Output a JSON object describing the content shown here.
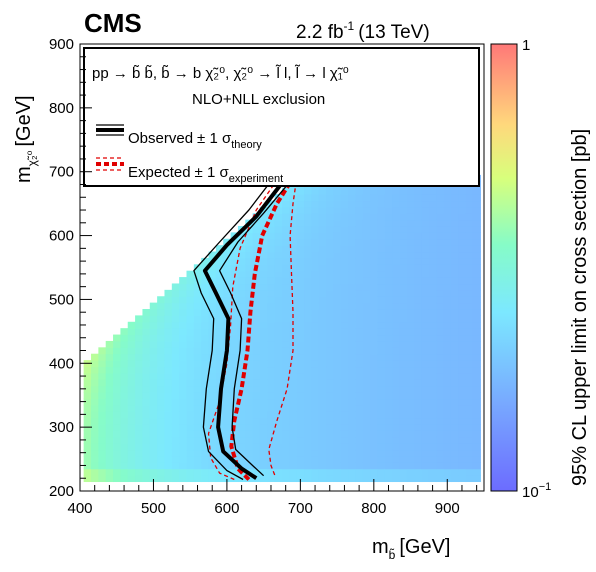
{
  "header": {
    "experiment": "CMS",
    "lumi_value": "2.2 fb",
    "lumi_exp": "-1",
    "energy": "(13 TeV)"
  },
  "legend": {
    "process": "pp → b̃ b̃, b̃ → b χ̃₂⁰, χ̃₂⁰ → l̃ l, l̃ → l χ̃₁⁰",
    "exclusion": "NLO+NLL exclusion",
    "observed_main": "Observed",
    "observed_pm": "± 1 σ",
    "observed_sub": "theory",
    "expected_main": "Expected",
    "expected_pm": "± 1 σ",
    "expected_sub": "experiment"
  },
  "colorbar": {
    "title": "95% CL upper limit on cross section [pb]",
    "top_label": "1",
    "bottom_label": "10",
    "bottom_exp": "−1"
  },
  "colors": {
    "observed": "#000000",
    "expected": "#e00000"
  },
  "chart_data": {
    "type": "heatmap",
    "xlabel": "m",
    "xlabel_sub": "b̃",
    "xlabel_unit": "[GeV]",
    "ylabel": "m",
    "ylabel_sub": "χ̃₂⁰",
    "ylabel_unit": "[GeV]",
    "xlim": [
      400,
      950
    ],
    "ylim": [
      200,
      900
    ],
    "x_ticks": [
      "400",
      "500",
      "600",
      "700",
      "800",
      "900"
    ],
    "y_ticks": [
      "200",
      "300",
      "400",
      "500",
      "600",
      "700",
      "800",
      "900"
    ],
    "z_scale": "log",
    "zlim": [
      0.1,
      1
    ],
    "cell_size_gev": 10,
    "curves": {
      "observed": [
        [
          640,
          220
        ],
        [
          620,
          235
        ],
        [
          595,
          262
        ],
        [
          588,
          300
        ],
        [
          592,
          360
        ],
        [
          600,
          420
        ],
        [
          602,
          470
        ],
        [
          585,
          510
        ],
        [
          570,
          545
        ],
        [
          600,
          585
        ],
        [
          640,
          630
        ],
        [
          680,
          690
        ]
      ],
      "observed_plus": [
        [
          622,
          218
        ],
        [
          600,
          232
        ],
        [
          575,
          262
        ],
        [
          568,
          300
        ],
        [
          572,
          360
        ],
        [
          580,
          420
        ],
        [
          582,
          470
        ],
        [
          565,
          510
        ],
        [
          555,
          545
        ],
        [
          590,
          590
        ],
        [
          630,
          640
        ],
        [
          670,
          700
        ]
      ],
      "observed_minus": [
        [
          650,
          224
        ],
        [
          635,
          240
        ],
        [
          612,
          265
        ],
        [
          607,
          300
        ],
        [
          610,
          360
        ],
        [
          618,
          420
        ],
        [
          620,
          470
        ],
        [
          605,
          510
        ],
        [
          590,
          545
        ],
        [
          615,
          590
        ],
        [
          650,
          635
        ],
        [
          690,
          690
        ]
      ],
      "expected": [
        [
          630,
          218
        ],
        [
          615,
          235
        ],
        [
          606,
          270
        ],
        [
          610,
          310
        ],
        [
          620,
          360
        ],
        [
          628,
          420
        ],
        [
          632,
          480
        ],
        [
          638,
          540
        ],
        [
          648,
          600
        ],
        [
          668,
          650
        ],
        [
          690,
          690
        ]
      ],
      "expected_plus": [
        [
          610,
          218
        ],
        [
          590,
          228
        ],
        [
          578,
          252
        ],
        [
          575,
          290
        ],
        [
          590,
          340
        ],
        [
          600,
          400
        ],
        [
          605,
          460
        ],
        [
          608,
          520
        ],
        [
          618,
          580
        ],
        [
          640,
          640
        ],
        [
          670,
          690
        ]
      ],
      "expected_minus": [
        [
          665,
          225
        ],
        [
          660,
          240
        ],
        [
          657,
          265
        ],
        [
          668,
          310
        ],
        [
          682,
          360
        ],
        [
          690,
          420
        ],
        [
          690,
          480
        ],
        [
          688,
          540
        ],
        [
          686,
          600
        ],
        [
          690,
          650
        ],
        [
          695,
          690
        ]
      ]
    }
  }
}
